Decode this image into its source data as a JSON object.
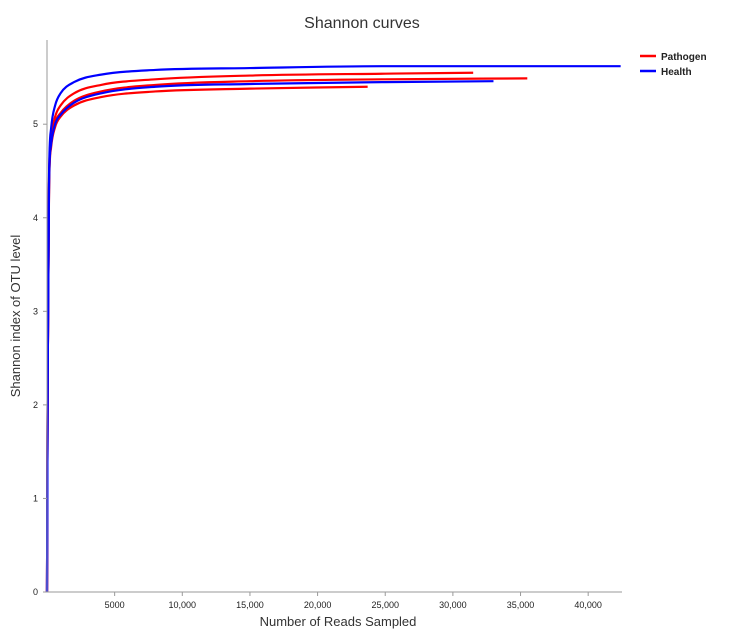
{
  "chart_data": {
    "type": "line",
    "title": "Shannon curves",
    "xlabel": "Number of Reads Sampled",
    "ylabel": "Shannon index of OTU level",
    "xlim": [
      0,
      42500
    ],
    "ylim": [
      0,
      5.9
    ],
    "x_ticks": [
      5000,
      10000,
      15000,
      20000,
      25000,
      30000,
      35000,
      40000
    ],
    "x_tick_labels": [
      "5000",
      "10,000",
      "15,000",
      "20,000",
      "25,000",
      "30,000",
      "35,000",
      "40,000"
    ],
    "y_ticks": [
      0,
      1,
      2,
      3,
      4,
      5
    ],
    "y_tick_labels": [
      "0",
      "1",
      "2",
      "3",
      "4",
      "5"
    ],
    "grid": false,
    "legend_position": "top-right",
    "legend": [
      {
        "label": "Pathogen",
        "color": "#ff0000"
      },
      {
        "label": "Health",
        "color": "#0000ff"
      }
    ],
    "series": [
      {
        "group": "Pathogen",
        "color": "#ff0000",
        "x": [
          0,
          50,
          150,
          300,
          600,
          1000,
          2000,
          4000,
          8000,
          15000,
          23700
        ],
        "y": [
          0,
          2.3,
          4.3,
          4.75,
          4.97,
          5.08,
          5.2,
          5.29,
          5.35,
          5.38,
          5.4
        ]
      },
      {
        "group": "Pathogen",
        "color": "#ff0000",
        "x": [
          0,
          50,
          150,
          300,
          600,
          1000,
          2000,
          4000,
          8000,
          15000,
          25000,
          31500
        ],
        "y": [
          0,
          2.3,
          4.4,
          4.85,
          5.08,
          5.2,
          5.33,
          5.42,
          5.48,
          5.52,
          5.54,
          5.55
        ]
      },
      {
        "group": "Pathogen",
        "color": "#ff0000",
        "x": [
          0,
          50,
          150,
          300,
          600,
          1000,
          2000,
          4000,
          8000,
          15000,
          25000,
          35500
        ],
        "y": [
          0,
          2.3,
          4.35,
          4.8,
          5.02,
          5.12,
          5.25,
          5.35,
          5.42,
          5.46,
          5.48,
          5.49
        ]
      },
      {
        "group": "Health",
        "color": "#0000ff",
        "x": [
          0,
          50,
          150,
          300,
          600,
          1000,
          2000,
          4000,
          8000,
          15000,
          25000,
          33000
        ],
        "y": [
          0,
          2.3,
          4.35,
          4.78,
          5.0,
          5.1,
          5.23,
          5.33,
          5.4,
          5.43,
          5.45,
          5.46
        ]
      },
      {
        "group": "Health",
        "color": "#0000ff",
        "x": [
          0,
          50,
          150,
          300,
          600,
          1000,
          2000,
          4000,
          8000,
          15000,
          25000,
          35000,
          42400
        ],
        "y": [
          0,
          2.3,
          4.45,
          4.95,
          5.2,
          5.33,
          5.45,
          5.53,
          5.58,
          5.6,
          5.62,
          5.62,
          5.62
        ]
      }
    ]
  }
}
